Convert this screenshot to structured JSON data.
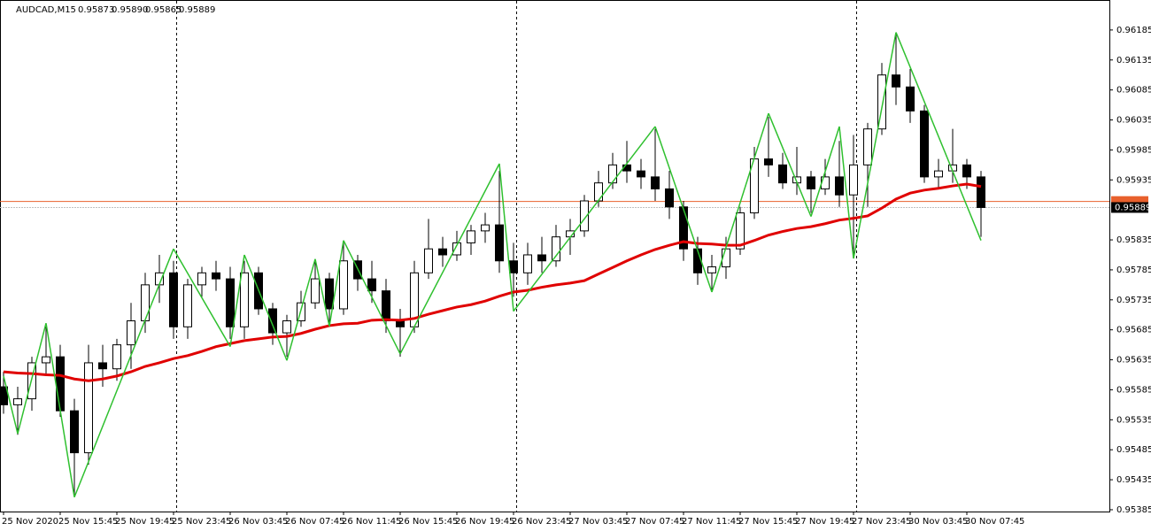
{
  "chart_data": {
    "type": "candlestick",
    "symbol": "AUDCAD,M15",
    "quote": [
      "0.95873",
      "0.95890",
      "0.95865",
      "0.95889"
    ],
    "categories": [
      "25 Nov 2020",
      null,
      null,
      null,
      "25 Nov 15:45",
      null,
      null,
      null,
      "25 Nov 19:45",
      null,
      null,
      null,
      "25 Nov 23:45",
      null,
      null,
      null,
      "26 Nov 03:45",
      null,
      null,
      null,
      "26 Nov 07:45",
      null,
      null,
      null,
      "26 Nov 11:45",
      null,
      null,
      null,
      "26 Nov 15:45",
      null,
      null,
      null,
      "26 Nov 19:45",
      null,
      null,
      null,
      "26 Nov 23:45",
      null,
      null,
      null,
      "27 Nov 03:45",
      null,
      null,
      null,
      "27 Nov 07:45",
      null,
      null,
      null,
      "27 Nov 11:45",
      null,
      null,
      null,
      "27 Nov 15:45",
      null,
      null,
      null,
      "27 Nov 19:45",
      null,
      null,
      null,
      "27 Nov 23:45",
      null,
      null,
      null,
      "30 Nov 03:45",
      null,
      null,
      null,
      "30 Nov 07:45",
      null
    ],
    "open": [
      0.9559,
      0.9556,
      0.9557,
      0.9563,
      0.9564,
      0.9555,
      0.9548,
      0.9563,
      0.9562,
      0.9566,
      0.957,
      0.9576,
      0.9578,
      0.9569,
      0.9576,
      0.9578,
      0.9577,
      0.9569,
      0.9578,
      0.9572,
      0.9568,
      0.957,
      0.9573,
      0.9577,
      0.9572,
      0.958,
      0.9577,
      0.9575,
      0.957,
      0.9569,
      0.9578,
      0.9582,
      0.9581,
      0.9583,
      0.9585,
      0.9586,
      0.958,
      0.9578,
      0.9581,
      0.958,
      0.9584,
      0.9585,
      0.959,
      0.9593,
      0.9596,
      0.9595,
      0.9594,
      0.9592,
      0.9589,
      0.9582,
      0.9578,
      0.9579,
      0.9582,
      0.9588,
      0.9597,
      0.9596,
      0.9593,
      0.9594,
      0.9592,
      0.9594,
      0.9591,
      0.9596,
      0.9602,
      0.9611,
      0.9609,
      0.9605,
      0.9594,
      0.9595,
      0.9596,
      0.9594
    ],
    "high": [
      0.95615,
      0.9559,
      0.9564,
      0.9569,
      0.9566,
      0.9557,
      0.9566,
      0.9566,
      0.9567,
      0.9573,
      0.9578,
      0.9581,
      0.958,
      0.9577,
      0.9579,
      0.958,
      0.9579,
      0.958,
      0.9579,
      0.9573,
      0.9571,
      0.9575,
      0.958,
      0.9578,
      0.9583,
      0.9581,
      0.958,
      0.9577,
      0.9572,
      0.958,
      0.9587,
      0.9584,
      0.9585,
      0.9586,
      0.9588,
      0.9595,
      0.9583,
      0.9583,
      0.9584,
      0.9586,
      0.9587,
      0.9591,
      0.9595,
      0.9598,
      0.96,
      0.9597,
      0.9602,
      0.9595,
      0.959,
      0.9584,
      0.9581,
      0.9584,
      0.9589,
      0.9599,
      0.9604,
      0.9598,
      0.9599,
      0.9595,
      0.9597,
      0.96,
      0.9601,
      0.9603,
      0.9613,
      0.9618,
      0.9612,
      0.9606,
      0.9597,
      0.9602,
      0.9597,
      0.9595
    ],
    "low": [
      0.95545,
      0.9551,
      0.9555,
      0.9561,
      0.9554,
      0.9541,
      0.9546,
      0.9559,
      0.956,
      0.9562,
      0.9568,
      0.9573,
      0.9567,
      0.9567,
      0.9574,
      0.9575,
      0.9567,
      0.9567,
      0.9571,
      0.9566,
      0.9564,
      0.9569,
      0.9572,
      0.9569,
      0.9571,
      0.9575,
      0.9573,
      0.9568,
      0.9564,
      0.9568,
      0.9577,
      0.9579,
      0.958,
      0.9581,
      0.9583,
      0.9578,
      0.9574,
      0.9576,
      0.9578,
      0.9579,
      0.9581,
      0.9584,
      0.9589,
      0.9592,
      0.9593,
      0.9592,
      0.959,
      0.9587,
      0.958,
      0.9576,
      0.9575,
      0.9577,
      0.9581,
      0.9587,
      0.9594,
      0.9592,
      0.9591,
      0.9588,
      0.9591,
      0.9589,
      0.9581,
      0.9589,
      0.9601,
      0.9606,
      0.9603,
      0.9593,
      0.9592,
      0.9593,
      0.9592,
      0.9584
    ],
    "close": [
      0.9556,
      0.9557,
      0.9563,
      0.9564,
      0.9555,
      0.9548,
      0.9563,
      0.9562,
      0.9566,
      0.957,
      0.9576,
      0.9578,
      0.9569,
      0.9576,
      0.9578,
      0.9577,
      0.9569,
      0.9578,
      0.9572,
      0.9568,
      0.957,
      0.9573,
      0.9577,
      0.9572,
      0.958,
      0.9577,
      0.9575,
      0.957,
      0.9569,
      0.9578,
      0.9582,
      0.9581,
      0.9583,
      0.9585,
      0.9586,
      0.958,
      0.9578,
      0.9581,
      0.958,
      0.9584,
      0.9585,
      0.959,
      0.9593,
      0.9596,
      0.9595,
      0.9594,
      0.9592,
      0.9589,
      0.9582,
      0.9578,
      0.9579,
      0.9582,
      0.9588,
      0.9597,
      0.9596,
      0.9593,
      0.9594,
      0.9592,
      0.9594,
      0.9591,
      0.9596,
      0.9602,
      0.9611,
      0.9609,
      0.9605,
      0.9594,
      0.9595,
      0.9596,
      0.9594,
      0.95889
    ],
    "moving_average": {
      "color": "#e00000",
      "values": [
        0.95615,
        0.95613,
        0.95612,
        0.9561,
        0.95609,
        0.95603,
        0.956,
        0.95603,
        0.95608,
        0.95615,
        0.95624,
        0.9563,
        0.95637,
        0.95642,
        0.95649,
        0.95657,
        0.95662,
        0.95667,
        0.9567,
        0.95673,
        0.95674,
        0.95679,
        0.95686,
        0.95692,
        0.95695,
        0.95696,
        0.95701,
        0.95702,
        0.95701,
        0.95704,
        0.95711,
        0.95717,
        0.95723,
        0.95727,
        0.95733,
        0.95741,
        0.95748,
        0.95751,
        0.95756,
        0.9576,
        0.95763,
        0.95767,
        0.95778,
        0.95789,
        0.958,
        0.9581,
        0.95819,
        0.95826,
        0.95832,
        0.95829,
        0.95828,
        0.95826,
        0.95826,
        0.95834,
        0.95843,
        0.95849,
        0.95854,
        0.95857,
        0.95862,
        0.95868,
        0.95871,
        0.95875,
        0.95888,
        0.95903,
        0.95913,
        0.95918,
        0.95921,
        0.95925,
        0.95928,
        0.95924
      ]
    },
    "zigzag": {
      "color": "#2fc02f",
      "values": [
        0.95608,
        0.95512,
        null,
        0.95696,
        null,
        0.95406,
        null,
        null,
        null,
        null,
        null,
        null,
        0.9582,
        null,
        null,
        null,
        0.95657,
        0.9581,
        null,
        null,
        0.95634,
        null,
        0.95803,
        0.95691,
        0.95834,
        null,
        null,
        null,
        0.95645,
        null,
        null,
        null,
        null,
        null,
        null,
        0.95962,
        0.95716,
        null,
        null,
        null,
        null,
        null,
        null,
        null,
        null,
        null,
        0.96024,
        null,
        null,
        null,
        0.95748,
        null,
        null,
        null,
        0.96046,
        null,
        null,
        0.95874,
        null,
        0.96024,
        0.95804,
        null,
        null,
        0.96181,
        null,
        null,
        null,
        null,
        null,
        0.95834
      ]
    },
    "level_line": {
      "value": 0.95899,
      "color": "#e8602c"
    },
    "current_price": 0.95889,
    "ylim": [
      0.95382,
      0.96235
    ],
    "yticks": [
      0.96185,
      0.96135,
      0.96085,
      0.96035,
      0.95985,
      0.95935,
      0.95835,
      0.95785,
      0.95735,
      0.95685,
      0.95635,
      0.95585,
      0.95535,
      0.95485,
      0.95435,
      0.95385
    ],
    "bull_color": "#ffffff",
    "bear_color": "#000000"
  }
}
